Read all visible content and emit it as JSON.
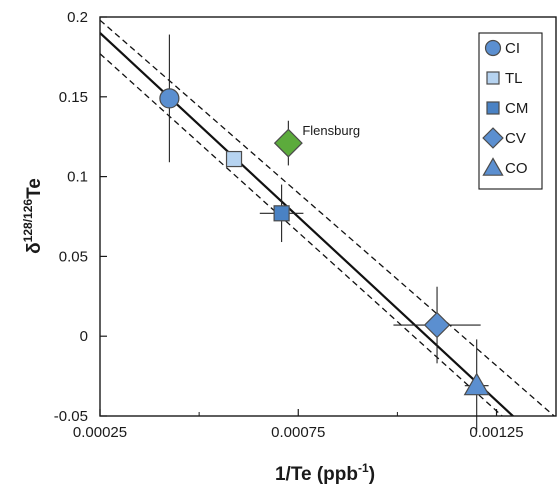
{
  "chart_data": {
    "type": "scatter",
    "xlabel": {
      "base": "1/Te (ppb",
      "sup": "-1",
      "tail": ")"
    },
    "ylabel": {
      "base": "δ",
      "sup": "128/126",
      "tail": "Te"
    },
    "xlim": [
      0.00025,
      0.0014
    ],
    "ylim": [
      -0.05,
      0.2
    ],
    "xticks": [
      {
        "value": 0.00025,
        "label": "0.00025"
      },
      {
        "value": 0.00075,
        "label": "0.00075"
      },
      {
        "value": 0.00125,
        "label": "0.00125"
      }
    ],
    "xticks_minor": [
      0.0005,
      0.001
    ],
    "yticks": [
      {
        "value": -0.05,
        "label": "-0.05"
      },
      {
        "value": 0,
        "label": "0"
      },
      {
        "value": 0.05,
        "label": "0.05"
      },
      {
        "value": 0.1,
        "label": "0.1"
      },
      {
        "value": 0.15,
        "label": "0.15"
      },
      {
        "value": 0.2,
        "label": "0.2"
      }
    ],
    "grid": false,
    "legend_position": "top-right",
    "series": [
      {
        "name": "CI",
        "marker": "circle",
        "color": "#5b8fd0",
        "points": [
          {
            "x": 0.000425,
            "y": 0.149,
            "xerr": 0,
            "yerr": 0.04
          }
        ]
      },
      {
        "name": "TL",
        "marker": "square",
        "color": "#b6d3f0",
        "points": [
          {
            "x": 0.000588,
            "y": 0.111,
            "xerr": 0,
            "yerr": 0
          }
        ]
      },
      {
        "name": "CM",
        "marker": "square",
        "color": "#4a82c4",
        "points": [
          {
            "x": 0.000708,
            "y": 0.077,
            "xerr": 5.5e-05,
            "yerr": 0.018
          }
        ]
      },
      {
        "name": "CV",
        "marker": "diamond",
        "color": "#5b8fd0",
        "points": [
          {
            "x": 0.0011,
            "y": 0.007,
            "xerr": 0.00011,
            "yerr": 0.024
          }
        ]
      },
      {
        "name": "CO",
        "marker": "triangle",
        "color": "#5b8fd0",
        "points": [
          {
            "x": 0.0012,
            "y": -0.031,
            "xerr": 3e-05,
            "yerr": 0.029
          }
        ]
      }
    ],
    "outlier": {
      "label": "Flensburg",
      "marker": "diamond",
      "color": "#5cab3c",
      "x": 0.000725,
      "y": 0.121,
      "xerr": 0,
      "yerr": 0.014
    },
    "regression": {
      "fit": [
        {
          "x": 0.00025,
          "y": 0.19
        },
        {
          "x": 0.0013,
          "y": -0.052
        }
      ],
      "upper": [
        {
          "x": 0.00025,
          "y": 0.198
        },
        {
          "x": 0.0014,
          "y": -0.051
        }
      ],
      "lower": [
        {
          "x": 0.00025,
          "y": 0.177
        },
        {
          "x": 0.0013,
          "y": -0.058
        }
      ]
    }
  }
}
